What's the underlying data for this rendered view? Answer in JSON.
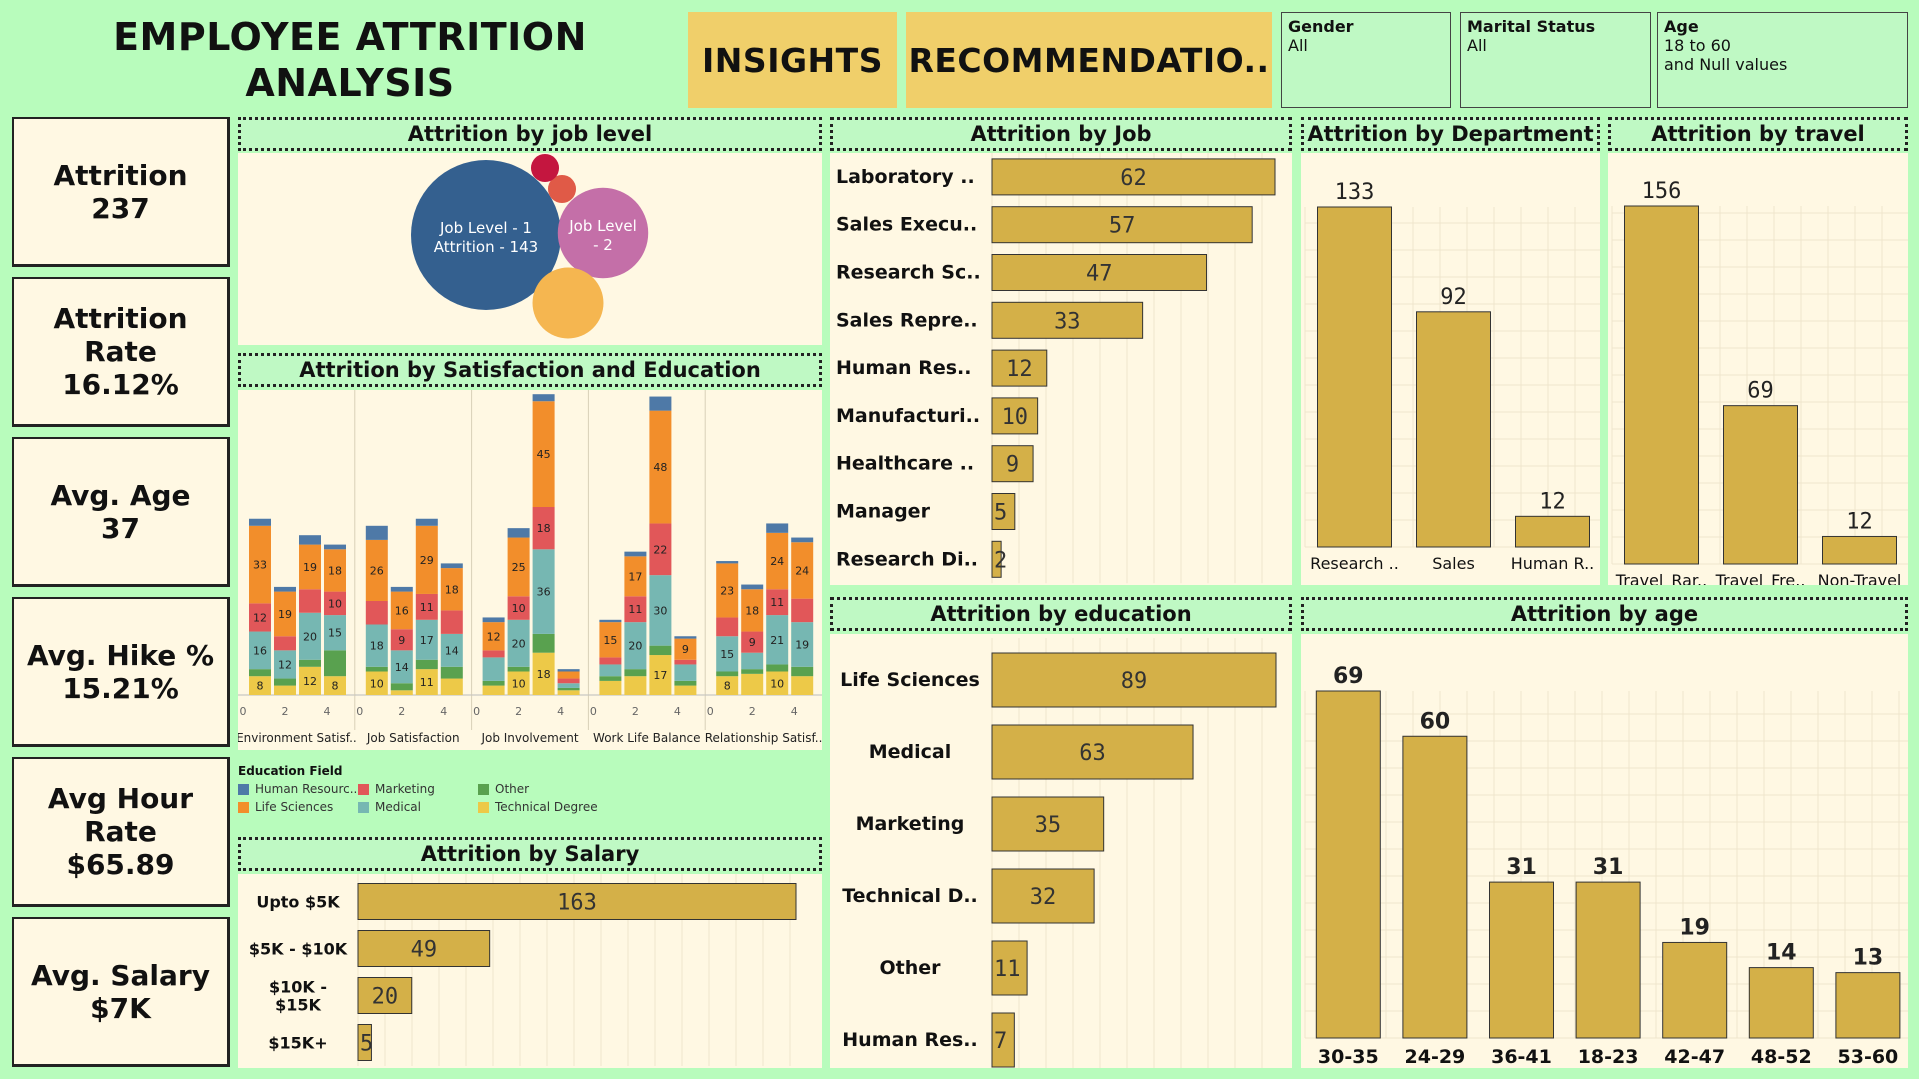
{
  "header": {
    "title_line1": "EMPLOYEE ATTRITION",
    "title_line2": "ANALYSIS",
    "insights_label": "INSIGHTS",
    "recommendations_label": "RECOMMENDATIO.."
  },
  "filters": {
    "gender": {
      "label": "Gender",
      "value": "All"
    },
    "marital": {
      "label": "Marital Status",
      "value": "All"
    },
    "age": {
      "label": "Age",
      "value_line1": "18 to 60",
      "value_line2": "and Null values"
    }
  },
  "kpis": [
    {
      "label": "Attrition",
      "value": "237"
    },
    {
      "label": "Attrition Rate",
      "value": "16.12%"
    },
    {
      "label": "Avg. Age",
      "value": "37"
    },
    {
      "label": "Avg. Hike %",
      "value": "15.21%"
    },
    {
      "label_line1": "Avg Hour",
      "label_line2": "Rate",
      "value": "$65.89"
    },
    {
      "label": "Avg. Salary",
      "value": "$7K"
    }
  ],
  "panels": {
    "job_level": "Attrition by job level",
    "satisfaction": "Attrition by Satisfaction and Education",
    "salary": "Attrition by Salary",
    "job": "Attrition by Job",
    "department": "Attrition by Department",
    "travel": "Attrition by travel",
    "education": "Attrition by education",
    "age": "Attrition by age"
  },
  "colors": {
    "bar": "#d4b048",
    "human_resources": "#4e79a7",
    "life_sciences": "#f28e2b",
    "marketing": "#e15759",
    "medical": "#76b7b2",
    "other": "#59a14f",
    "technical_degree": "#edc948"
  },
  "chart_data": [
    {
      "id": "job_level",
      "type": "bubble",
      "title": "Attrition by job level",
      "bubbles": [
        {
          "label_line1": "Job Level - 1",
          "label_line2": "Attrition - 143",
          "value": 143,
          "color": "#34608f"
        },
        {
          "label_line1": "Job Level",
          "label_line2": "- 2",
          "value": 52,
          "color": "#c46fa8"
        },
        {
          "label_line1": "",
          "label_line2": "",
          "value": 32,
          "color": "#f5b650"
        },
        {
          "label_line1": "",
          "label_line2": "",
          "value": 5,
          "color": "#e05a47"
        },
        {
          "label_line1": "",
          "label_line2": "",
          "value": 5,
          "color": "#c4163f"
        }
      ]
    },
    {
      "id": "satisfaction",
      "type": "bar",
      "stacked": true,
      "title": "Attrition by Satisfaction and Education",
      "legend_title": "Education Field",
      "series_names": [
        "Human Resourc..",
        "Life Sciences",
        "Marketing",
        "Medical",
        "Other",
        "Technical Degree"
      ],
      "x_ticks": [
        "0",
        "2",
        "4"
      ],
      "groups": [
        {
          "name": "Environment Satisf..",
          "bars": [
            {
              "hr": 3,
              "ls": 33,
              "mk": 12,
              "md": 16,
              "ot": 3,
              "td": 8,
              "labels": {
                "ls": "33",
                "mk": "12",
                "md": "16",
                "td": "8"
              }
            },
            {
              "hr": 2,
              "ls": 19,
              "mk": 6,
              "md": 12,
              "ot": 3,
              "td": 4,
              "labels": {
                "ls": "19",
                "md": "12"
              }
            },
            {
              "hr": 4,
              "ls": 19,
              "mk": 10,
              "md": 20,
              "ot": 3,
              "td": 12,
              "labels": {
                "ls": "19",
                "md": "20",
                "td": "12"
              }
            },
            {
              "hr": 2,
              "ls": 18,
              "mk": 10,
              "md": 15,
              "ot": 11,
              "td": 8,
              "labels": {
                "ls": "18",
                "mk": "10",
                "md": "15",
                "td": "8"
              }
            }
          ]
        },
        {
          "name": "Job Satisfaction",
          "bars": [
            {
              "hr": 6,
              "ls": 26,
              "mk": 10,
              "md": 18,
              "ot": 2,
              "td": 10,
              "labels": {
                "ls": "26",
                "md": "18",
                "td": "10"
              }
            },
            {
              "hr": 2,
              "ls": 16,
              "mk": 9,
              "md": 14,
              "ot": 3,
              "td": 2,
              "labels": {
                "ls": "16",
                "mk": "9",
                "md": "14"
              }
            },
            {
              "hr": 3,
              "ls": 29,
              "mk": 11,
              "md": 17,
              "ot": 4,
              "td": 11,
              "labels": {
                "ls": "29",
                "mk": "11",
                "md": "17",
                "td": "11"
              }
            },
            {
              "hr": 2,
              "ls": 18,
              "mk": 10,
              "md": 14,
              "ot": 5,
              "td": 7,
              "labels": {
                "ls": "18",
                "md": "14"
              }
            }
          ]
        },
        {
          "name": "Job Involvement",
          "bars": [
            {
              "hr": 2,
              "ls": 12,
              "mk": 3,
              "md": 10,
              "ot": 2,
              "td": 4,
              "labels": {
                "ls": "12"
              }
            },
            {
              "hr": 4,
              "ls": 25,
              "mk": 10,
              "md": 20,
              "ot": 2,
              "td": 10,
              "labels": {
                "ls": "25",
                "mk": "10",
                "md": "20",
                "td": "10"
              }
            },
            {
              "hr": 3,
              "ls": 45,
              "mk": 18,
              "md": 36,
              "ot": 8,
              "td": 18,
              "labels": {
                "ls": "45",
                "mk": "18",
                "md": "36",
                "td": "18"
              }
            },
            {
              "hr": 1,
              "ls": 3,
              "mk": 2,
              "md": 2,
              "ot": 1,
              "td": 2,
              "labels": {}
            }
          ]
        },
        {
          "name": "Work Life Balance",
          "bars": [
            {
              "hr": 1,
              "ls": 15,
              "mk": 3,
              "md": 5,
              "ot": 2,
              "td": 6,
              "labels": {
                "ls": "15"
              }
            },
            {
              "hr": 2,
              "ls": 17,
              "mk": 11,
              "md": 20,
              "ot": 3,
              "td": 8,
              "labels": {
                "ls": "17",
                "mk": "11",
                "md": "20"
              }
            },
            {
              "hr": 6,
              "ls": 48,
              "mk": 22,
              "md": 30,
              "ot": 4,
              "td": 17,
              "labels": {
                "ls": "48",
                "mk": "22",
                "md": "30",
                "td": "17"
              }
            },
            {
              "hr": 1,
              "ls": 9,
              "mk": 2,
              "md": 7,
              "ot": 2,
              "td": 4,
              "labels": {
                "ls": "9"
              }
            }
          ]
        },
        {
          "name": "Relationship Satisf..",
          "bars": [
            {
              "hr": 1,
              "ls": 23,
              "mk": 8,
              "md": 15,
              "ot": 2,
              "td": 8,
              "labels": {
                "ls": "23",
                "md": "15",
                "td": "8"
              }
            },
            {
              "hr": 2,
              "ls": 18,
              "mk": 9,
              "md": 7,
              "ot": 2,
              "td": 9,
              "labels": {
                "ls": "18",
                "mk": "9"
              }
            },
            {
              "hr": 4,
              "ls": 24,
              "mk": 11,
              "md": 21,
              "ot": 3,
              "td": 10,
              "labels": {
                "ls": "24",
                "mk": "11",
                "md": "21",
                "td": "10"
              }
            },
            {
              "hr": 2,
              "ls": 24,
              "mk": 10,
              "md": 19,
              "ot": 4,
              "td": 8,
              "labels": {
                "ls": "24",
                "md": "19"
              }
            }
          ]
        }
      ]
    },
    {
      "id": "salary",
      "type": "bar",
      "orientation": "horizontal",
      "title": "Attrition by Salary",
      "categories": [
        "Upto $5K",
        "$5K - $10K",
        "$10K - $15K",
        "$15K+"
      ],
      "category_lines": [
        [
          "Upto $5K"
        ],
        [
          "$5K - $10K"
        ],
        [
          "$10K -",
          "$15K"
        ],
        [
          "$15K+"
        ]
      ],
      "values": [
        163,
        49,
        20,
        5
      ]
    },
    {
      "id": "job",
      "type": "bar",
      "orientation": "horizontal",
      "title": "Attrition by Job",
      "categories": [
        "Laboratory ..",
        "Sales Execu..",
        "Research Sc..",
        "Sales Repre..",
        "Human Res..",
        "Manufacturi..",
        "Healthcare ..",
        "Manager",
        "Research Di.."
      ],
      "values": [
        62,
        57,
        47,
        33,
        12,
        10,
        9,
        5,
        2
      ]
    },
    {
      "id": "department",
      "type": "bar",
      "title": "Attrition by Department",
      "categories": [
        "Research ..",
        "Sales",
        "Human R.."
      ],
      "values": [
        133,
        92,
        12
      ]
    },
    {
      "id": "travel",
      "type": "bar",
      "title": "Attrition by travel",
      "categories": [
        "Travel_Rar..",
        "Travel_Fre..",
        "Non-Travel"
      ],
      "values": [
        156,
        69,
        12
      ]
    },
    {
      "id": "education",
      "type": "bar",
      "orientation": "horizontal",
      "title": "Attrition by education",
      "categories": [
        "Life Sciences",
        "Medical",
        "Marketing",
        "Technical D..",
        "Other",
        "Human Res.."
      ],
      "values": [
        89,
        63,
        35,
        32,
        11,
        7
      ]
    },
    {
      "id": "age",
      "type": "bar",
      "title": "Attrition by age",
      "categories": [
        "30-35",
        "24-29",
        "36-41",
        "18-23",
        "42-47",
        "48-52",
        "53-60"
      ],
      "values": [
        69,
        60,
        31,
        31,
        19,
        14,
        13
      ]
    }
  ]
}
